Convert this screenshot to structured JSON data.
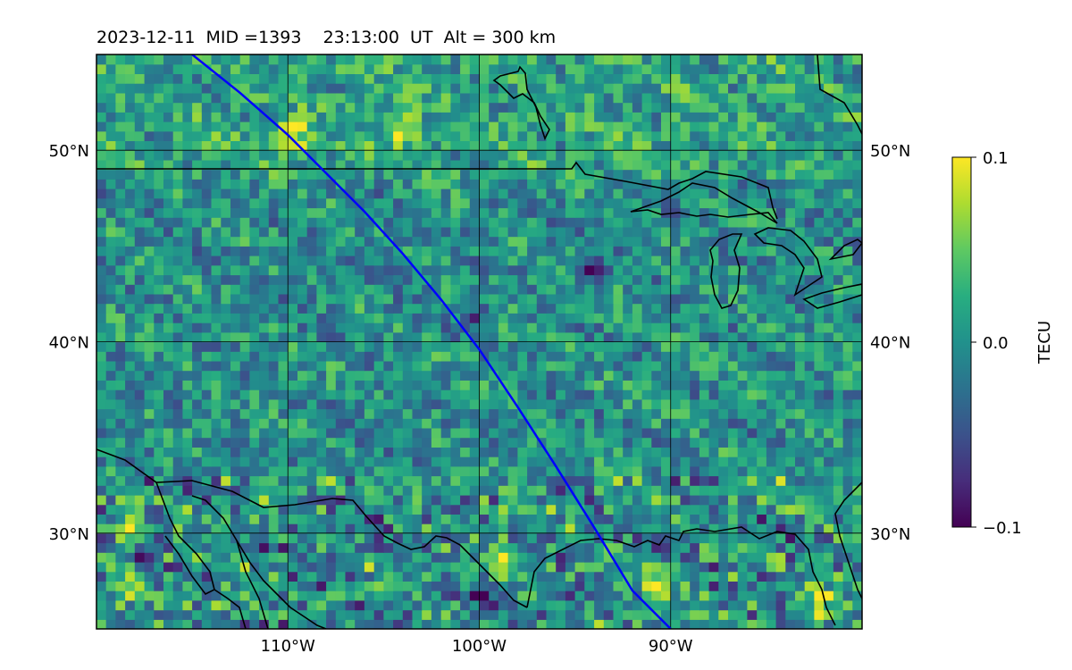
{
  "header": {
    "title": "2023-12-11  MID =1393    23:13:00  UT  Alt = 300 km"
  },
  "chart_data": {
    "type": "heatmap",
    "projection": "map",
    "field": "TEC perturbation",
    "lon_range": [
      -120,
      -80
    ],
    "lat_range": [
      25,
      55
    ],
    "lon_ticks": [
      {
        "value": -110,
        "label": "110°W"
      },
      {
        "value": -100,
        "label": "100°W"
      },
      {
        "value": -90,
        "label": "90°W"
      }
    ],
    "lat_ticks": [
      {
        "value": 50,
        "label": "50°N"
      },
      {
        "value": 40,
        "label": "40°N"
      },
      {
        "value": 30,
        "label": "30°N"
      }
    ],
    "grid": true,
    "colorbar": {
      "label": "TECU",
      "colormap": "viridis",
      "vmin": -0.1,
      "vmax": 0.1,
      "ticks": [
        {
          "value": 0.1,
          "label": "0.1"
        },
        {
          "value": 0.0,
          "label": "0.0"
        },
        {
          "value": -0.1,
          "label": "−0.1"
        }
      ],
      "position": "right"
    },
    "satellite_track": {
      "color": "#0000ff",
      "points": [
        [
          -115.0,
          55.0
        ],
        [
          -112.5,
          53.0
        ],
        [
          -110.0,
          50.8
        ],
        [
          -108.0,
          48.8
        ],
        [
          -106.0,
          46.8
        ],
        [
          -104.0,
          44.6
        ],
        [
          -102.0,
          42.2
        ],
        [
          -100.0,
          39.6
        ],
        [
          -98.0,
          36.6
        ],
        [
          -96.0,
          33.5
        ],
        [
          -94.0,
          30.3
        ],
        [
          -92.0,
          27.0
        ],
        [
          -90.0,
          25.0
        ]
      ]
    },
    "enhanced_regions": [
      {
        "lon": -118.5,
        "lat": 30.0
      },
      {
        "lon": -118.5,
        "lat": 26.8
      },
      {
        "lon": -110.0,
        "lat": 50.5
      },
      {
        "lon": -104.3,
        "lat": 51.0
      },
      {
        "lon": -91.0,
        "lat": 27.0
      },
      {
        "lon": -99.0,
        "lat": 28.0
      },
      {
        "lon": -82.5,
        "lat": 26.0
      }
    ],
    "depleted_regions": [
      {
        "lon": -118.0,
        "lat": 28.2
      },
      {
        "lon": -100.0,
        "lat": 26.5
      },
      {
        "lon": -100.5,
        "lat": 41.0
      },
      {
        "lon": -94.5,
        "lat": 43.5
      }
    ]
  }
}
